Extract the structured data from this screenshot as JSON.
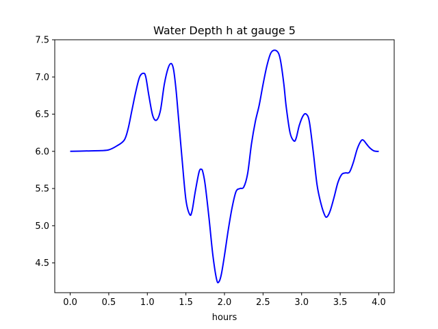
{
  "chart_data": {
    "type": "line",
    "title": "Water Depth h at gauge 5",
    "xlabel": "hours",
    "ylabel": "",
    "xlim": [
      -0.2,
      4.2
    ],
    "ylim": [
      4.1,
      7.5
    ],
    "xticks": [
      0.0,
      0.5,
      1.0,
      1.5,
      2.0,
      2.5,
      3.0,
      3.5,
      4.0
    ],
    "xtick_labels": [
      "0.0",
      "0.5",
      "1.0",
      "1.5",
      "2.0",
      "2.5",
      "3.0",
      "3.5",
      "4.0"
    ],
    "yticks": [
      4.5,
      5.0,
      5.5,
      6.0,
      6.5,
      7.0,
      7.5
    ],
    "ytick_labels": [
      "4.5",
      "5.0",
      "5.5",
      "6.0",
      "6.5",
      "7.0",
      "7.5"
    ],
    "grid": false,
    "series": [
      {
        "color": "#0000ff",
        "x": [
          0.0,
          0.2,
          0.4,
          0.5,
          0.6,
          0.7,
          0.75,
          0.8,
          0.85,
          0.9,
          0.95,
          0.98,
          1.02,
          1.07,
          1.12,
          1.17,
          1.22,
          1.27,
          1.31,
          1.34,
          1.37,
          1.4,
          1.45,
          1.5,
          1.55,
          1.58,
          1.62,
          1.67,
          1.7,
          1.72,
          1.75,
          1.8,
          1.85,
          1.9,
          1.93,
          1.96,
          2.0,
          2.05,
          2.1,
          2.15,
          2.2,
          2.25,
          2.3,
          2.35,
          2.4,
          2.45,
          2.5,
          2.55,
          2.6,
          2.65,
          2.7,
          2.73,
          2.77,
          2.8,
          2.85,
          2.9,
          2.93,
          2.97,
          3.02,
          3.06,
          3.1,
          3.15,
          3.2,
          3.25,
          3.3,
          3.33,
          3.37,
          3.42,
          3.47,
          3.52,
          3.57,
          3.62,
          3.67,
          3.72,
          3.77,
          3.8,
          3.84,
          3.88,
          3.93,
          3.97,
          4.0
        ],
        "y": [
          6.0,
          6.005,
          6.01,
          6.02,
          6.07,
          6.15,
          6.3,
          6.55,
          6.8,
          7.0,
          7.05,
          7.0,
          6.75,
          6.48,
          6.42,
          6.55,
          6.9,
          7.12,
          7.18,
          7.1,
          6.85,
          6.5,
          5.9,
          5.35,
          5.15,
          5.2,
          5.45,
          5.72,
          5.76,
          5.72,
          5.55,
          5.1,
          4.6,
          4.27,
          4.25,
          4.35,
          4.6,
          4.95,
          5.25,
          5.46,
          5.5,
          5.52,
          5.7,
          6.1,
          6.4,
          6.62,
          6.9,
          7.15,
          7.32,
          7.36,
          7.32,
          7.2,
          6.9,
          6.6,
          6.25,
          6.14,
          6.18,
          6.35,
          6.48,
          6.5,
          6.4,
          6.0,
          5.55,
          5.3,
          5.14,
          5.12,
          5.2,
          5.38,
          5.58,
          5.69,
          5.71,
          5.72,
          5.85,
          6.03,
          6.14,
          6.15,
          6.1,
          6.05,
          6.01,
          6.0,
          6.0
        ]
      }
    ]
  }
}
